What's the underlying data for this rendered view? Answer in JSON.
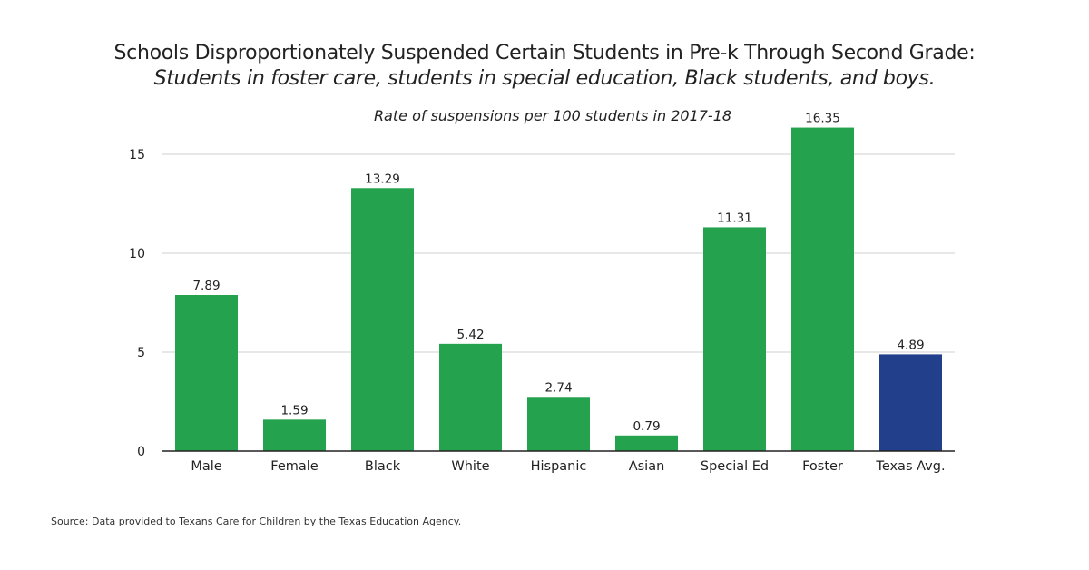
{
  "chart_data": {
    "type": "bar",
    "title": "Schools Disproportionately Suspended Certain Students in Pre-k Through Second Grade:",
    "subtitle": "Students in foster care, students in special education, Black students, and boys.",
    "chart_subtitle": "Rate of suspensions per 100 students in 2017-18",
    "categories": [
      "Male",
      "Female",
      "Black",
      "White",
      "Hispanic",
      "Asian",
      "Special Ed",
      "Foster",
      "Texas Avg."
    ],
    "values": [
      7.89,
      1.59,
      13.29,
      5.42,
      2.74,
      0.79,
      11.31,
      16.35,
      4.89
    ],
    "data_labels": [
      "7.89",
      "1.59",
      "13.29",
      "5.42",
      "2.74",
      "0.79",
      "11.31",
      "16.35",
      "4.89"
    ],
    "colors": [
      "#24a24d",
      "#24a24d",
      "#24a24d",
      "#24a24d",
      "#24a24d",
      "#24a24d",
      "#24a24d",
      "#24a24d",
      "#213f8a"
    ],
    "yticks": [
      0,
      5,
      10,
      15
    ],
    "ylim": [
      0,
      15
    ],
    "xlabel": "",
    "ylabel": "",
    "grid": true,
    "source": "Source: Data provided to Texans Care for Children by the Texas Education Agency."
  }
}
